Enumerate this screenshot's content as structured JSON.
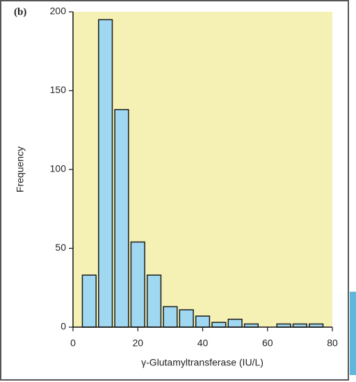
{
  "chart_data": {
    "type": "histogram",
    "panel_label": "(b)",
    "x_label": "γ-Glutamyltransferase (IU/L)",
    "y_label": "Frequency",
    "bins": [
      2.5,
      7.5,
      12.5,
      17.5,
      22.5,
      27.5,
      32.5,
      37.5,
      42.5,
      47.5,
      52.5,
      57.5,
      62.5,
      67.5,
      72.5,
      77.5
    ],
    "values": [
      33,
      195,
      138,
      54,
      33,
      13,
      11,
      7,
      3,
      5,
      2,
      0,
      2,
      2,
      2
    ],
    "color": "#9fd8f0",
    "edge_color": "#1a1a1a",
    "background": "#f5f0b4",
    "xlim": [
      0,
      80
    ],
    "xticks": [
      0,
      20,
      40,
      60,
      80
    ],
    "ylim": [
      0,
      200
    ],
    "yticks": [
      0,
      50,
      100,
      150,
      200
    ]
  }
}
